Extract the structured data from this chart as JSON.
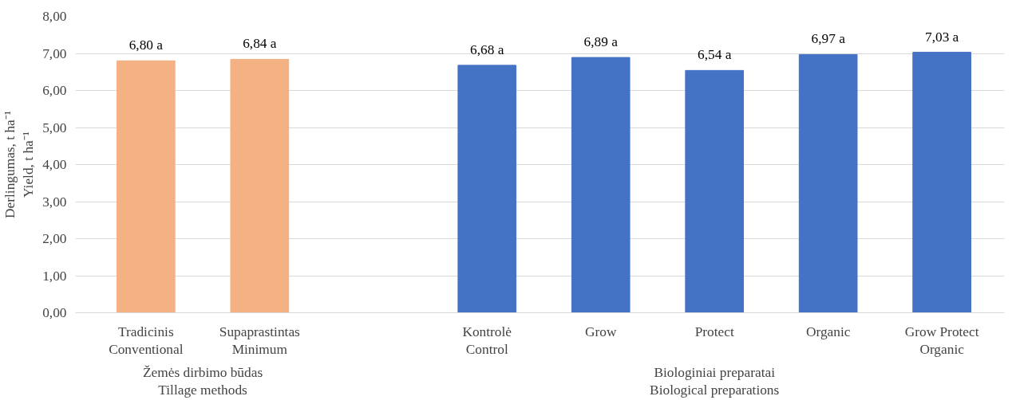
{
  "chart_data": {
    "type": "bar",
    "categories": [
      "Tradicinis\nConventional",
      "Supaprastintas\nMinimum",
      null,
      "Kontrolė\nControl",
      "Grow",
      "Protect",
      "Organic",
      "Grow Protect\nOrganic"
    ],
    "values": [
      6.8,
      6.84,
      null,
      6.68,
      6.89,
      6.54,
      6.97,
      7.03
    ],
    "colors": [
      "#f4b183",
      "#f4b183",
      null,
      "#4472c4",
      "#4472c4",
      "#4472c4",
      "#4472c4",
      "#4472c4"
    ],
    "value_labels": [
      "6,80 a",
      "6,84 a",
      null,
      "6,68 a",
      "6,89 a",
      "6,54 a",
      "6,97 a",
      "7,03 a"
    ],
    "ylabel": "Derlingumas, t ha⁻¹\nYield, t ha⁻¹",
    "ylim": [
      0,
      8
    ],
    "yticks": [
      {
        "value": 0,
        "label": "0,00"
      },
      {
        "value": 1,
        "label": "1,00"
      },
      {
        "value": 2,
        "label": "2,00"
      },
      {
        "value": 3,
        "label": "3,00"
      },
      {
        "value": 4,
        "label": "4,00"
      },
      {
        "value": 5,
        "label": "5,00"
      },
      {
        "value": 6,
        "label": "6,00"
      },
      {
        "value": 7,
        "label": "7,00"
      },
      {
        "value": 8,
        "label": "8,00"
      }
    ],
    "annotations": [
      "Žemės dirbimo būdas\nTillage methods",
      "Biologiniai preparatai\nBiological preparations"
    ],
    "grid": "y"
  }
}
